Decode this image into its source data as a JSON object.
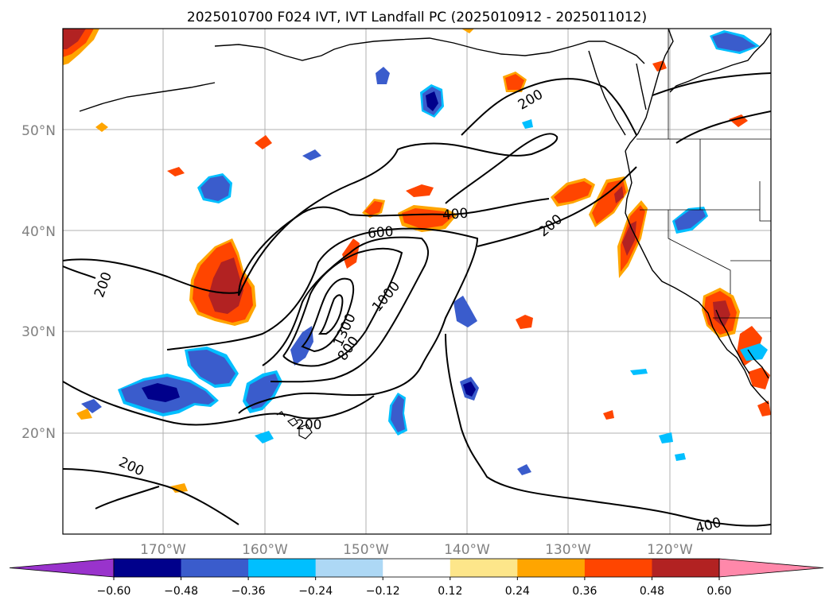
{
  "title": "2025010700 F024 IVT, IVT Landfall PC (2025010912 - 2025011012)",
  "lat_labels": [
    "50°N",
    "40°N",
    "30°N",
    "20°N"
  ],
  "lon_labels": [
    "170°W",
    "160°W",
    "150°W",
    "140°W",
    "130°W",
    "120°W"
  ],
  "contour_labels": [
    "200",
    "400",
    "600",
    "800",
    "1000",
    "1300",
    "200",
    "200",
    "200",
    "200",
    "400"
  ],
  "colorbar": {
    "ticks": [
      "−0.60",
      "−0.48",
      "−0.36",
      "−0.24",
      "−0.12",
      "0.12",
      "0.24",
      "0.36",
      "0.48",
      "0.60"
    ],
    "colors": [
      "#9933cc",
      "#00008b",
      "#3a5ccc",
      "#00bfff",
      "#add8f5",
      "#ffffff",
      "#fde68a",
      "#ffa500",
      "#ff4500",
      "#b22222",
      "#ff88aa"
    ]
  },
  "colors": {
    "contour": "#000000",
    "grid": "#b0b0b0",
    "coast": "#000000",
    "label_gray": "#808080"
  }
}
